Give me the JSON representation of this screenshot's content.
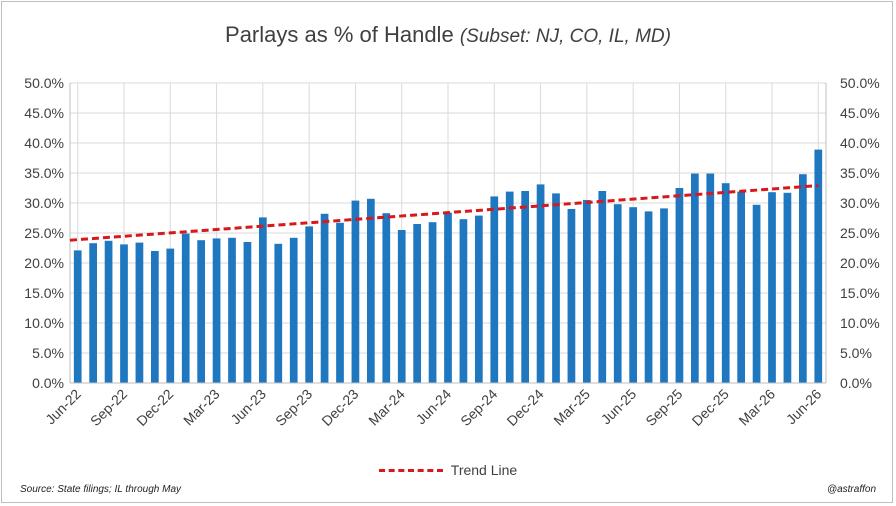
{
  "chart_data": {
    "type": "bar",
    "title": "Parlays as % of Handle",
    "subtitle": "(Subset: NJ, CO, IL, MD)",
    "months": [
      "Jun-22",
      "Jul-22",
      "Aug-22",
      "Sep-22",
      "Oct-22",
      "Nov-22",
      "Dec-22",
      "Jan-23",
      "Feb-23",
      "Mar-23",
      "Apr-23",
      "May-23",
      "Jun-23",
      "Jul-23",
      "Aug-23",
      "Sep-23",
      "Oct-23",
      "Nov-23",
      "Dec-23",
      "Jan-24",
      "Feb-24",
      "Mar-24",
      "Apr-24",
      "May-24",
      "Jun-24",
      "Jul-24",
      "Aug-24",
      "Sep-24",
      "Oct-24",
      "Nov-24",
      "Dec-24",
      "Jan-25",
      "Feb-25",
      "Mar-25",
      "Apr-25",
      "May-25",
      "Jun-25",
      "Jul-25",
      "Aug-25",
      "Sep-25",
      "Oct-25",
      "Nov-25",
      "Dec-25",
      "Jan-26",
      "Feb-26",
      "Mar-26",
      "Apr-26",
      "May-26",
      "Jun-26"
    ],
    "x_tick_labels": [
      "Jun-22",
      "Sep-22",
      "Dec-22",
      "Mar-23",
      "Jun-23",
      "Sep-23",
      "Dec-23",
      "Mar-24",
      "Jun-24",
      "Sep-24",
      "Dec-24",
      "Mar-25",
      "Jun-25",
      "Sep-25",
      "Dec-25",
      "Mar-26",
      "Jun-26"
    ],
    "values": [
      22.1,
      23.3,
      23.7,
      23.1,
      23.4,
      22.0,
      22.4,
      24.9,
      23.8,
      24.1,
      24.2,
      23.5,
      27.6,
      23.2,
      24.2,
      26.1,
      28.2,
      26.7,
      30.4,
      30.7,
      28.3,
      25.5,
      26.5,
      26.8,
      28.4,
      27.3,
      27.9,
      31.1,
      31.9,
      32.0,
      33.1,
      31.6,
      29.0,
      30.5,
      32.0,
      29.8,
      29.3,
      28.6,
      29.1,
      32.5,
      34.9,
      34.9,
      33.3,
      31.9,
      29.7,
      31.8,
      31.7,
      34.8,
      38.9
    ],
    "trend_line": {
      "label": "Trend Line",
      "start": 23.8,
      "end": 32.9,
      "color": "#d7191c"
    },
    "ylim": [
      0,
      50
    ],
    "y_tick_labels": [
      "0.0%",
      "5.0%",
      "10.0%",
      "15.0%",
      "20.0%",
      "25.0%",
      "30.0%",
      "35.0%",
      "40.0%",
      "45.0%",
      "50.0%"
    ],
    "bar_color": "#1f77c0",
    "grid": true
  },
  "footer": {
    "source": "Source: State filings; IL through May",
    "handle": "@astraffon"
  }
}
